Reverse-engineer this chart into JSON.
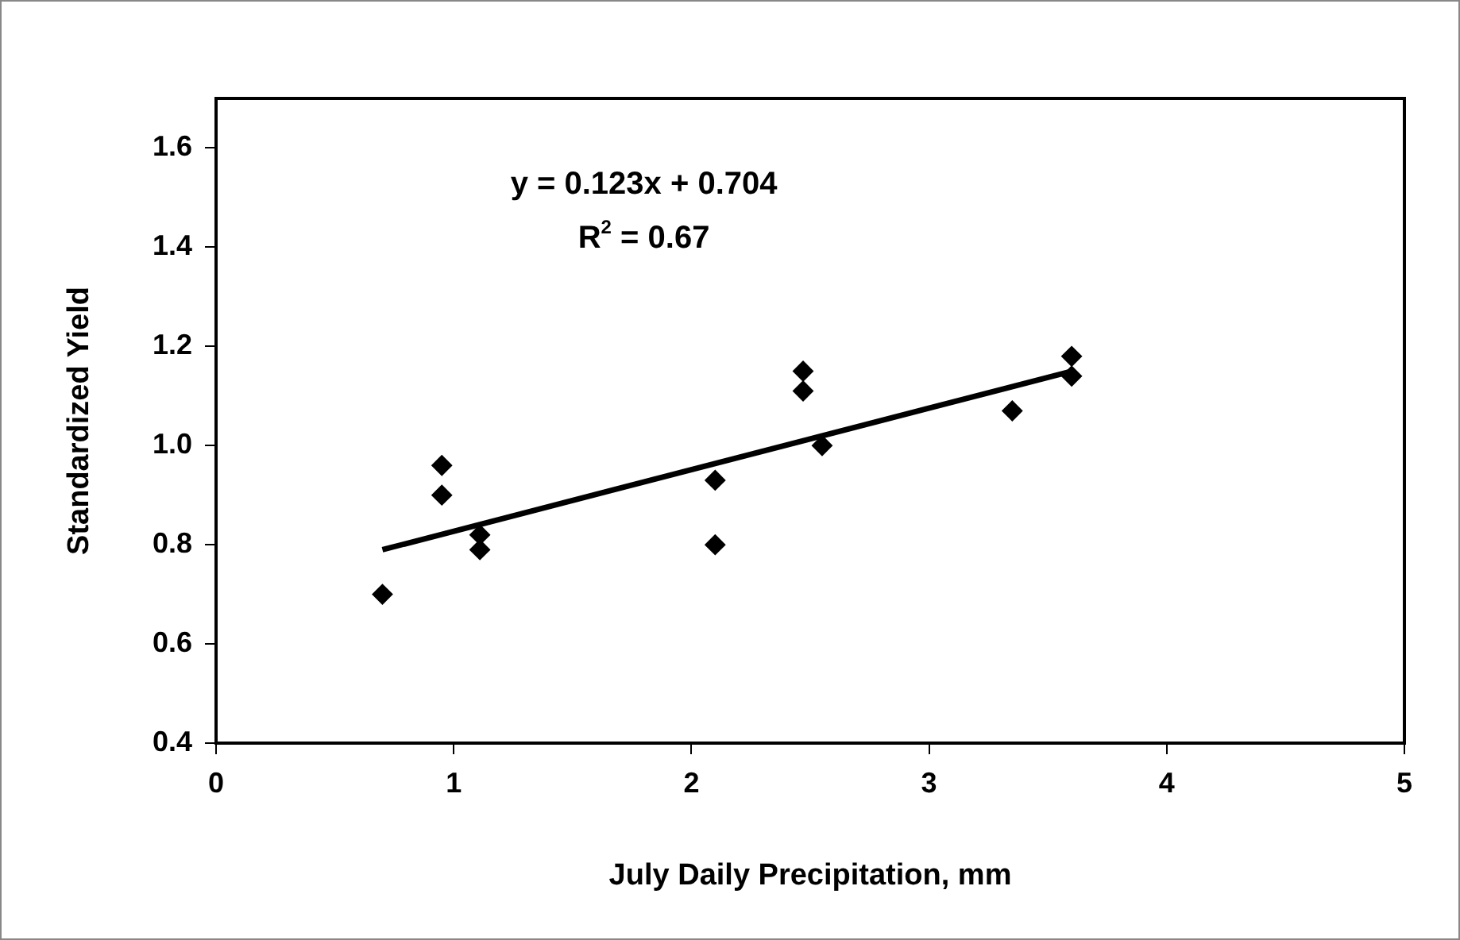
{
  "chart_data": {
    "type": "scatter",
    "xlabel": "July Daily Precipitation, mm",
    "ylabel": "Standardized Yield",
    "xlim": [
      0,
      5
    ],
    "xticks": [
      0,
      1,
      2,
      3,
      4,
      5
    ],
    "ylim": [
      0.4,
      1.7
    ],
    "yticks": [
      0.4,
      0.6,
      0.8,
      {
        "value": 1,
        "label": "1.0"
      },
      1.2,
      1.4,
      1.6
    ],
    "grid": false,
    "legend": false,
    "marker": "diamond",
    "series": [
      {
        "color": "#000000",
        "x": [
          0.7,
          0.95,
          0.95,
          1.11,
          1.11,
          2.1,
          2.1,
          2.47,
          2.47,
          2.55,
          3.35,
          3.6,
          3.6
        ],
        "values": [
          0.7,
          0.96,
          0.9,
          0.82,
          0.79,
          0.93,
          0.8,
          1.15,
          1.11,
          1.0,
          1.07,
          1.18,
          1.14
        ]
      },
      {
        "type": "line",
        "color": "#000000",
        "marker": "none",
        "line_style": "solid",
        "x": [
          0.7,
          3.6
        ],
        "values": [
          0.79,
          1.15
        ]
      }
    ],
    "annotations": [
      "y = 0.123x + 0.704",
      "R$^{2}$ = 0.67"
    ]
  }
}
